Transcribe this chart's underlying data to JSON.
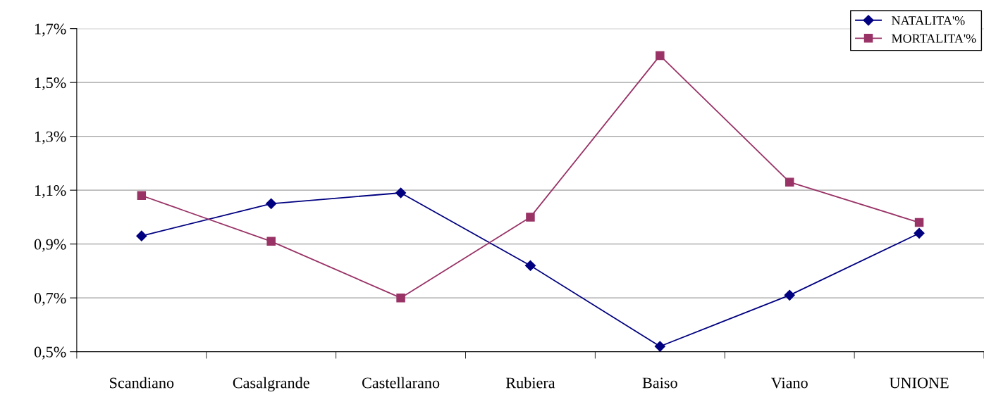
{
  "chart_data": {
    "type": "line",
    "categories": [
      "Scandiano",
      "Casalgrande",
      "Castellarano",
      "Rubiera",
      "Baiso",
      "Viano",
      "UNIONE"
    ],
    "series": [
      {
        "name": "NATALITA'%",
        "color": "#000080",
        "values": [
          0.93,
          1.05,
          1.09,
          0.82,
          0.52,
          0.71,
          0.94
        ]
      },
      {
        "name": "MORTALITA'%",
        "color": "#993366",
        "values": [
          1.08,
          0.91,
          0.7,
          1.0,
          1.6,
          1.13,
          0.98
        ],
        "marker": "square"
      }
    ],
    "ylim": [
      0.5,
      1.7
    ],
    "yticks": [
      {
        "value": 0.5,
        "label": "0,5%"
      },
      {
        "value": 0.7,
        "label": "0,7%"
      },
      {
        "value": 0.9,
        "label": "0,9%"
      },
      {
        "value": 1.1,
        "label": "1,1%"
      },
      {
        "value": 1.3,
        "label": "1,3%"
      },
      {
        "value": 1.5,
        "label": "1,5%"
      },
      {
        "value": 1.7,
        "label": "1,7%"
      }
    ],
    "grid": "y",
    "legend": "top right",
    "marker": "diamond",
    "line_style": "solid"
  }
}
